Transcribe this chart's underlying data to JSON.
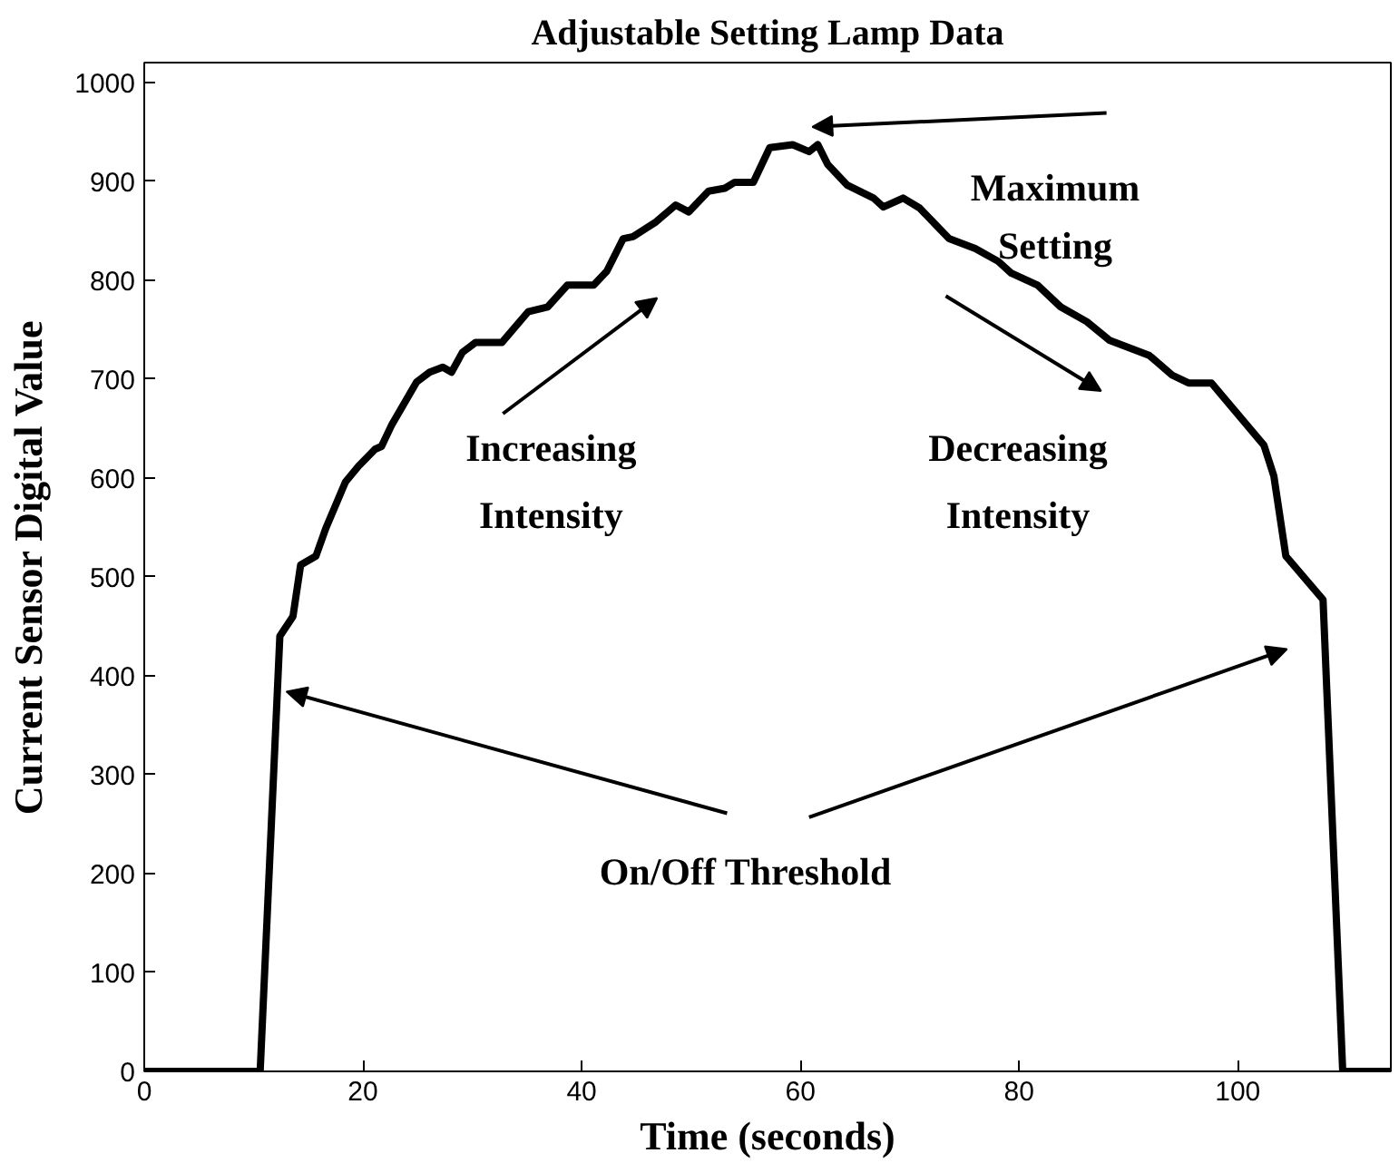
{
  "chart_data": {
    "type": "line",
    "title": "Adjustable Setting Lamp Data",
    "xlabel": "Time (seconds)",
    "ylabel": "Current Sensor Digital Value",
    "annotations": [
      "Maximum Setting",
      "Increasing Intensity",
      "Decreasing Intensity",
      {
        "text": "On/Off Threshold",
        "x": 13,
        "y": 384
      }
    ],
    "x": [
      0,
      10.6,
      12.4,
      13.6,
      14.3,
      15.7,
      16.6,
      18.4,
      19.6,
      21.1,
      21.7,
      22.6,
      24.9,
      26.1,
      27.3,
      28.1,
      29.1,
      30.3,
      32.7,
      35.1,
      36.9,
      38.7,
      41.1,
      42.3,
      43.8,
      44.7,
      46.8,
      48.6,
      49.8,
      51.6,
      53.1,
      54.0,
      55.7,
      57.2,
      59.3,
      60.8,
      61.6,
      62.5,
      64.3,
      66.7,
      67.6,
      69.4,
      70.9,
      73.6,
      76.0,
      78.1,
      79.3,
      81.7,
      83.8,
      86.2,
      88.3,
      91.9,
      94.0,
      95.5,
      97.6,
      102.4,
      103.3,
      104.4,
      107.8,
      109.6,
      114
    ],
    "series": [
      {
        "color": "#000000",
        "values": [
          0,
          0,
          440,
          460,
          512,
          521,
          549,
          596,
          612,
          629,
          632,
          653,
          697,
          707,
          712,
          707,
          727,
          737,
          737,
          768,
          773,
          795,
          795,
          809,
          842,
          844,
          859,
          876,
          869,
          890,
          893,
          899,
          899,
          934,
          937,
          930,
          937,
          917,
          896,
          883,
          874,
          883,
          873,
          842,
          832,
          819,
          807,
          795,
          773,
          758,
          739,
          724,
          704,
          696,
          696,
          633,
          602,
          521,
          477,
          0,
          0
        ]
      }
    ],
    "xlim": [
      0,
      114
    ],
    "ylim": [
      0,
      1020
    ],
    "xticks": [
      0,
      20,
      40,
      60,
      80,
      100
    ],
    "yticks": [
      0,
      100,
      200,
      300,
      400,
      500,
      600,
      700,
      800,
      900,
      1000
    ],
    "grid": false,
    "marker": "none",
    "line_style": "solid"
  }
}
